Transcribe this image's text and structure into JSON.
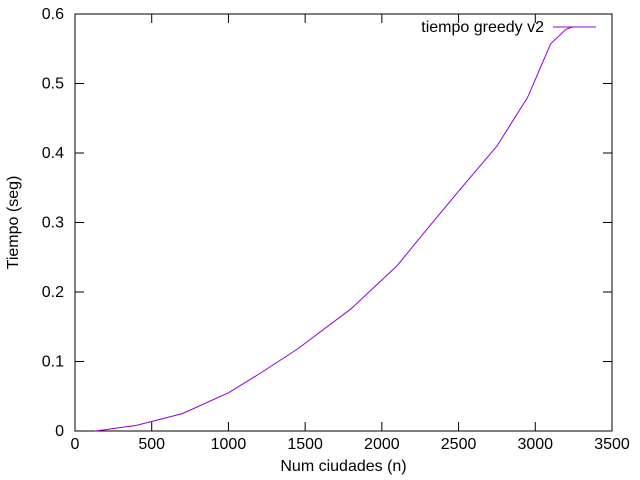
{
  "chart_data": {
    "type": "line",
    "title": "",
    "xlabel": "Num ciudades (n)",
    "ylabel": "Tiempo (seg)",
    "xlim": [
      0,
      3500
    ],
    "ylim": [
      0,
      0.6
    ],
    "xticks": [
      0,
      500,
      1000,
      1500,
      2000,
      2500,
      3000,
      3500
    ],
    "yticks": [
      0,
      0.1,
      0.2,
      0.3,
      0.4,
      0.5,
      0.6
    ],
    "xtick_labels": [
      "0",
      "500",
      "1000",
      "1500",
      "2000",
      "2500",
      "3000",
      "3500"
    ],
    "ytick_labels": [
      "0",
      "0.1",
      "0.2",
      "0.3",
      "0.4",
      "0.5",
      "0.6"
    ],
    "grid": false,
    "legend_position": "top-right",
    "series": [
      {
        "name": "tiempo greedy v2",
        "color": "#9400d3",
        "x": [
          130,
          200,
          400,
          700,
          1000,
          1200,
          1450,
          1800,
          2100,
          2300,
          2500,
          2750,
          2950,
          3100,
          3200,
          3250
        ],
        "y": [
          0.0,
          0.002,
          0.008,
          0.025,
          0.055,
          0.082,
          0.118,
          0.176,
          0.238,
          0.292,
          0.345,
          0.41,
          0.48,
          0.557,
          0.578,
          0.582
        ]
      }
    ]
  }
}
